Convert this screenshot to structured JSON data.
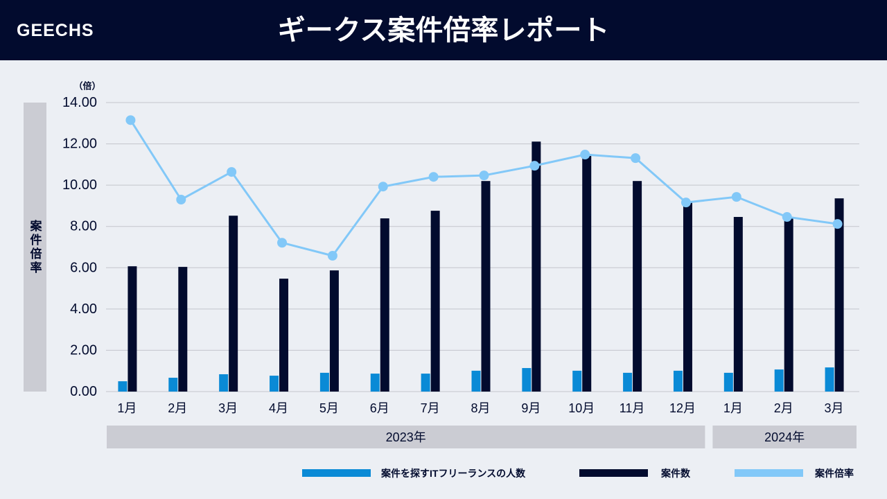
{
  "logo": "GEECHS",
  "chart_data": {
    "type": "bar-line",
    "title": "ギークス案件倍率レポート",
    "y_unit": "（倍）",
    "y_label": "案件倍率",
    "categories": [
      "1月",
      "2月",
      "3月",
      "4月",
      "5月",
      "6月",
      "7月",
      "8月",
      "9月",
      "10月",
      "11月",
      "12月",
      "1月",
      "2月",
      "3月"
    ],
    "x_groups": [
      {
        "label": "2023年",
        "span": 12
      },
      {
        "label": "2024年",
        "span": 3
      }
    ],
    "ylim": [
      0,
      14
    ],
    "yticks": [
      {
        "value": 0,
        "label": "0.00"
      },
      {
        "value": 2,
        "label": "2.00"
      },
      {
        "value": 4,
        "label": "4.00"
      },
      {
        "value": 6,
        "label": "6.00"
      },
      {
        "value": 8,
        "label": "8.00"
      },
      {
        "value": 10,
        "label": "10.00"
      },
      {
        "value": 12,
        "label": "12.00"
      },
      {
        "value": 14,
        "label": "14.00"
      }
    ],
    "grid": true,
    "series": [
      {
        "name": "案件を探すITフリーランスの人数",
        "kind": "bar",
        "color": "#0a8ad6",
        "values": [
          0.5,
          0.67,
          0.84,
          0.77,
          0.91,
          0.87,
          0.87,
          1.01,
          1.14,
          1.01,
          0.91,
          1.01,
          0.91,
          1.07,
          1.17
        ]
      },
      {
        "name": "案件数",
        "kind": "bar",
        "color": "#020b2e",
        "values": [
          6.07,
          6.04,
          8.52,
          5.47,
          5.87,
          8.39,
          8.76,
          10.2,
          12.11,
          11.51,
          10.2,
          9.16,
          8.46,
          8.46,
          9.36
        ]
      },
      {
        "name": "案件倍率",
        "kind": "line",
        "color": "#82c8f8",
        "values": [
          13.15,
          9.3,
          10.64,
          7.21,
          6.58,
          9.93,
          10.4,
          10.47,
          10.94,
          11.48,
          11.31,
          9.16,
          9.43,
          8.46,
          8.12
        ]
      }
    ]
  }
}
